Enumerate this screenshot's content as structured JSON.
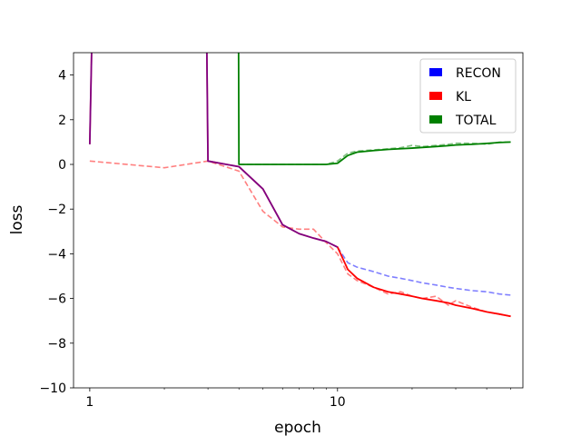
{
  "chart_data": {
    "type": "line",
    "xscale": "log",
    "xlabel": "epoch",
    "ylabel": "loss",
    "xlim": [
      0.86,
      56
    ],
    "ylim": [
      -10,
      5
    ],
    "xticks": [
      1,
      10
    ],
    "yticks": [
      -10,
      -8,
      -6,
      -4,
      -2,
      0,
      2,
      4
    ],
    "grid": false,
    "legend_position": "top-right",
    "legend": [
      {
        "name": "RECON",
        "color": "#0000ff"
      },
      {
        "name": "KL",
        "color": "#ff0000"
      },
      {
        "name": "TOTAL",
        "color": "#008000"
      }
    ],
    "series": [
      {
        "color": "#ff0000",
        "style": "dashed",
        "alpha": 0.5,
        "x": [
          1,
          2,
          3,
          4,
          5,
          6,
          7,
          8,
          9,
          10,
          11,
          12,
          14,
          16,
          18,
          20,
          22,
          25,
          28,
          30,
          35,
          40,
          45,
          50
        ],
        "y": [
          0.15,
          -0.15,
          0.15,
          -0.3,
          -2.1,
          -2.8,
          -2.9,
          -2.9,
          -3.5,
          -4.0,
          -4.9,
          -5.2,
          -5.5,
          -5.8,
          -5.7,
          -5.9,
          -6.0,
          -5.9,
          -6.3,
          -6.1,
          -6.4,
          -6.6,
          -6.7,
          -6.8
        ]
      },
      {
        "color": "#0000ff",
        "style": "dashed",
        "alpha": 0.5,
        "x": [
          10,
          11,
          12,
          14,
          16,
          18,
          20,
          22,
          25,
          28,
          30,
          35,
          40,
          45,
          50
        ],
        "y": [
          -3.7,
          -4.4,
          -4.6,
          -4.8,
          -5.0,
          -5.1,
          -5.2,
          -5.3,
          -5.4,
          -5.5,
          -5.55,
          -5.65,
          -5.7,
          -5.8,
          -5.85
        ]
      },
      {
        "color": "#008000",
        "style": "dashed",
        "alpha": 0.5,
        "x": [
          4,
          5,
          6,
          7,
          8,
          9,
          10,
          11,
          12,
          14,
          16,
          18,
          20,
          22,
          25,
          28,
          30,
          35,
          40,
          45,
          50
        ],
        "y": [
          0.0,
          0.0,
          0.0,
          0.0,
          0.0,
          0.0,
          0.15,
          0.5,
          0.6,
          0.65,
          0.7,
          0.75,
          0.85,
          0.8,
          0.85,
          0.9,
          0.95,
          0.95,
          0.9,
          1.0,
          1.0
        ]
      },
      {
        "color": "#ff0000",
        "style": "solid",
        "alpha": 1,
        "x": [
          1,
          1.03,
          2.95,
          3,
          4,
          5,
          6,
          7,
          8,
          9,
          10,
          11,
          12,
          14,
          16,
          18,
          20,
          22,
          25,
          28,
          30,
          35,
          40,
          45,
          50
        ],
        "y": [
          0.9,
          8,
          8,
          0.15,
          -0.1,
          -1.1,
          -2.7,
          -3.1,
          -3.3,
          -3.45,
          -3.7,
          -4.7,
          -5.1,
          -5.5,
          -5.7,
          -5.8,
          -5.9,
          -6.0,
          -6.1,
          -6.2,
          -6.3,
          -6.45,
          -6.6,
          -6.7,
          -6.8
        ]
      },
      {
        "color": "#0000ff",
        "style": "solid",
        "alpha": 0.5,
        "x": [
          1,
          1.03,
          2.95,
          3,
          4,
          5,
          6,
          7,
          8,
          9,
          10
        ],
        "y": [
          0.9,
          8,
          8,
          0.15,
          -0.1,
          -1.1,
          -2.7,
          -3.1,
          -3.3,
          -3.45,
          -3.7
        ]
      },
      {
        "color": "#008000",
        "style": "solid",
        "alpha": 1,
        "x": [
          3.98,
          4,
          5,
          6,
          7,
          8,
          9,
          10,
          11,
          12,
          14,
          16,
          18,
          20,
          22,
          25,
          28,
          30,
          35,
          40,
          45,
          50
        ],
        "y": [
          8,
          0.0,
          0.0,
          0.0,
          0.0,
          0.0,
          0.0,
          0.05,
          0.4,
          0.55,
          0.62,
          0.67,
          0.7,
          0.73,
          0.76,
          0.8,
          0.84,
          0.87,
          0.9,
          0.94,
          0.98,
          1.0
        ]
      }
    ]
  }
}
